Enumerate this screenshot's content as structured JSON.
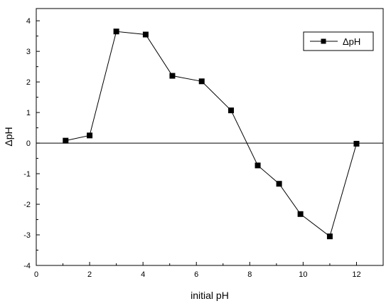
{
  "chart_data": {
    "type": "scatter",
    "xlabel": "initial pH",
    "ylabel": "ΔpH",
    "xlim": [
      0,
      13
    ],
    "ylim": [
      -4,
      4.4
    ],
    "xticks": [
      0,
      2,
      4,
      6,
      8,
      10,
      12
    ],
    "yticks": [
      -4,
      -3,
      -2,
      -1,
      0,
      1,
      2,
      3,
      4
    ],
    "zero_line": true,
    "grid": false,
    "legend_position": "top-right",
    "series": [
      {
        "name": "ΔpH",
        "marker": "square",
        "line": true,
        "color": "#000000",
        "x": [
          1.1,
          2.0,
          3.0,
          4.1,
          5.1,
          6.2,
          7.3,
          8.3,
          9.1,
          9.9,
          11.0,
          12.0
        ],
        "y": [
          0.08,
          0.25,
          3.65,
          3.55,
          2.2,
          2.02,
          1.07,
          -0.73,
          -1.33,
          -2.32,
          -3.05,
          -0.02
        ]
      }
    ]
  }
}
